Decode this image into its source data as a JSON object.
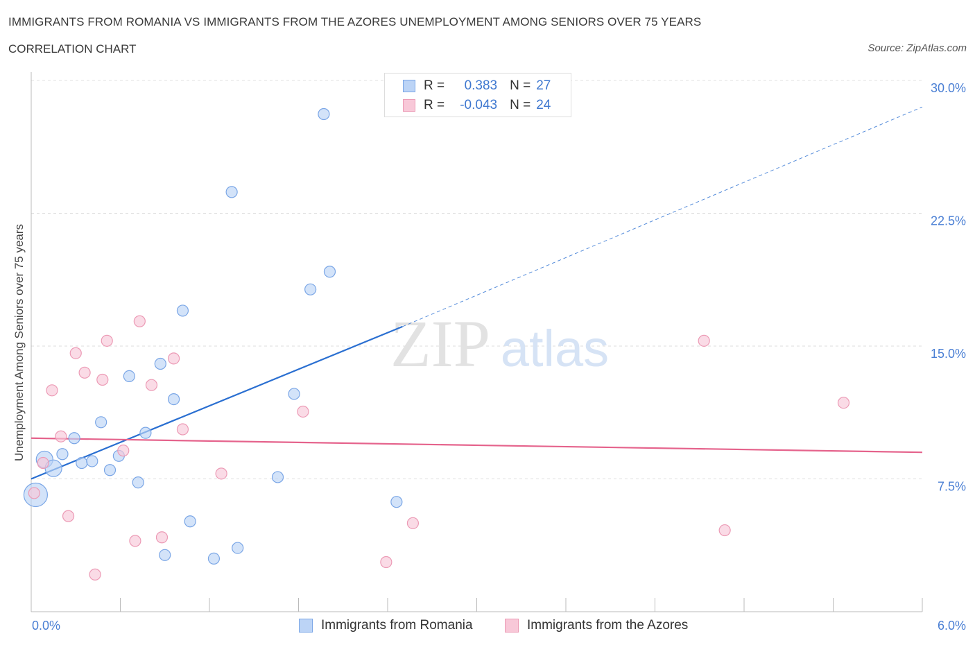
{
  "title": "IMMIGRANTS FROM ROMANIA VS IMMIGRANTS FROM THE AZORES UNEMPLOYMENT AMONG SENIORS OVER 75 YEARS",
  "subtitle": "CORRELATION CHART",
  "source": "Source: ZipAtlas.com",
  "watermark": {
    "zip": "ZIP",
    "atlas": "atlas"
  },
  "legend": {
    "rows": [
      {
        "r_label": "R =",
        "r_value": "0.383",
        "n_label": "N =",
        "n_value": "27"
      },
      {
        "r_label": "R =",
        "r_value": "-0.043",
        "n_label": "N =",
        "n_value": "24"
      }
    ]
  },
  "colors": {
    "romania_fill": "#bcd4f6",
    "romania_stroke": "#7aa6e6",
    "romania_line": "#2a6fd1",
    "azores_fill": "#f8c8d8",
    "azores_stroke": "#ec9ab5",
    "azores_line": "#e5638c",
    "tick_label": "#4a7fd4"
  },
  "chart_data": {
    "type": "scatter",
    "title": "IMMIGRANTS FROM ROMANIA VS IMMIGRANTS FROM THE AZORES UNEMPLOYMENT AMONG SENIORS OVER 75 YEARS",
    "xlabel": "",
    "ylabel": "Unemployment Among Seniors over 75 years",
    "xlim": [
      0,
      6
    ],
    "ylim": [
      0,
      30
    ],
    "x_tick_labels": [
      "0.0%",
      "6.0%"
    ],
    "y_tick_labels": [
      "7.5%",
      "15.0%",
      "22.5%",
      "30.0%"
    ],
    "y_ticks": [
      7.5,
      15,
      22.5,
      30
    ],
    "grid": true,
    "legend_position": "top-center",
    "series": [
      {
        "name": "Immigrants from Romania",
        "points": [
          {
            "x": 0.03,
            "y": 6.6,
            "size": 3
          },
          {
            "x": 0.09,
            "y": 8.6,
            "size": 2
          },
          {
            "x": 0.15,
            "y": 8.1,
            "size": 2
          },
          {
            "x": 0.21,
            "y": 8.9,
            "size": 1
          },
          {
            "x": 0.29,
            "y": 9.8,
            "size": 1
          },
          {
            "x": 0.34,
            "y": 8.4,
            "size": 1
          },
          {
            "x": 0.41,
            "y": 8.5,
            "size": 1
          },
          {
            "x": 0.47,
            "y": 10.7,
            "size": 1
          },
          {
            "x": 0.53,
            "y": 8.0,
            "size": 1
          },
          {
            "x": 0.59,
            "y": 8.8,
            "size": 1
          },
          {
            "x": 0.66,
            "y": 13.3,
            "size": 1
          },
          {
            "x": 0.72,
            "y": 7.3,
            "size": 1
          },
          {
            "x": 0.77,
            "y": 10.1,
            "size": 1
          },
          {
            "x": 0.87,
            "y": 14.0,
            "size": 1
          },
          {
            "x": 0.9,
            "y": 3.2,
            "size": 1
          },
          {
            "x": 0.96,
            "y": 12.0,
            "size": 1
          },
          {
            "x": 1.02,
            "y": 17.0,
            "size": 1
          },
          {
            "x": 1.07,
            "y": 5.1,
            "size": 1
          },
          {
            "x": 1.23,
            "y": 3.0,
            "size": 1
          },
          {
            "x": 1.35,
            "y": 23.7,
            "size": 1
          },
          {
            "x": 1.39,
            "y": 3.6,
            "size": 1
          },
          {
            "x": 1.66,
            "y": 7.6,
            "size": 1
          },
          {
            "x": 1.77,
            "y": 12.3,
            "size": 1
          },
          {
            "x": 1.88,
            "y": 18.2,
            "size": 1
          },
          {
            "x": 1.97,
            "y": 28.1,
            "size": 1
          },
          {
            "x": 2.01,
            "y": 19.2,
            "size": 1
          },
          {
            "x": 2.46,
            "y": 6.2,
            "size": 1
          }
        ],
        "trend": {
          "x0": 0,
          "y0": 7.5,
          "x1": 2.5,
          "y1": 16.1,
          "dashed_to_x": 6.0,
          "dashed_to_y": 28.5
        }
      },
      {
        "name": "Immigrants from the Azores",
        "points": [
          {
            "x": 0.02,
            "y": 6.7,
            "size": 1
          },
          {
            "x": 0.08,
            "y": 8.4,
            "size": 1
          },
          {
            "x": 0.14,
            "y": 12.5,
            "size": 1
          },
          {
            "x": 0.2,
            "y": 9.9,
            "size": 1
          },
          {
            "x": 0.25,
            "y": 5.4,
            "size": 1
          },
          {
            "x": 0.3,
            "y": 14.6,
            "size": 1
          },
          {
            "x": 0.36,
            "y": 13.5,
            "size": 1
          },
          {
            "x": 0.43,
            "y": 2.1,
            "size": 1
          },
          {
            "x": 0.48,
            "y": 13.1,
            "size": 1
          },
          {
            "x": 0.51,
            "y": 15.3,
            "size": 1
          },
          {
            "x": 0.62,
            "y": 9.1,
            "size": 1
          },
          {
            "x": 0.7,
            "y": 4.0,
            "size": 1
          },
          {
            "x": 0.73,
            "y": 16.4,
            "size": 1
          },
          {
            "x": 0.81,
            "y": 12.8,
            "size": 1
          },
          {
            "x": 0.88,
            "y": 4.2,
            "size": 1
          },
          {
            "x": 0.96,
            "y": 14.3,
            "size": 1
          },
          {
            "x": 1.02,
            "y": 10.3,
            "size": 1
          },
          {
            "x": 1.28,
            "y": 7.8,
            "size": 1
          },
          {
            "x": 1.83,
            "y": 11.3,
            "size": 1
          },
          {
            "x": 2.39,
            "y": 2.8,
            "size": 1
          },
          {
            "x": 2.57,
            "y": 5.0,
            "size": 1
          },
          {
            "x": 4.53,
            "y": 15.3,
            "size": 1
          },
          {
            "x": 4.67,
            "y": 4.6,
            "size": 1
          },
          {
            "x": 5.47,
            "y": 11.8,
            "size": 1
          }
        ],
        "trend": {
          "x0": 0,
          "y0": 9.8,
          "x1": 6.0,
          "y1": 9.0
        }
      }
    ]
  }
}
